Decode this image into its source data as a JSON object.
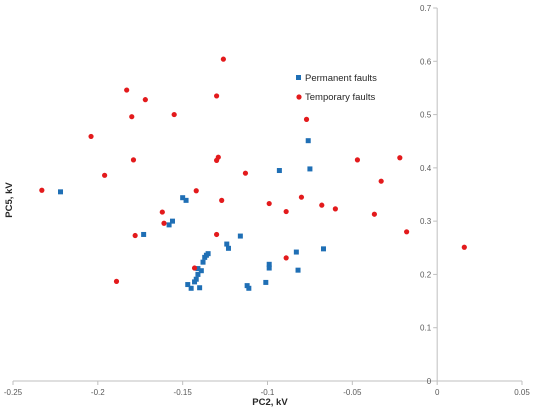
{
  "chart_data": {
    "type": "scatter",
    "title": "",
    "xlabel": "PC2, kV",
    "ylabel": "PC5, kV",
    "xlim": [
      -0.25,
      0.05
    ],
    "ylim": [
      0,
      0.7
    ],
    "x_ticks": [
      "-0.25",
      "-0.2",
      "-0.15",
      "-0.1",
      "-0.05",
      "0",
      "0.05"
    ],
    "y_ticks": [
      "0",
      "0.1",
      "0.2",
      "0.3",
      "0.4",
      "0.5",
      "0.6",
      "0.7"
    ],
    "grid": false,
    "legend_position": "upper-center-right",
    "series": [
      {
        "name": "Permanent faults",
        "marker": "square",
        "color": "#1f6fb5",
        "points": [
          [
            -0.222,
            0.355
          ],
          [
            -0.173,
            0.275
          ],
          [
            -0.158,
            0.293
          ],
          [
            -0.156,
            0.3
          ],
          [
            -0.15,
            0.344
          ],
          [
            -0.148,
            0.339
          ],
          [
            -0.147,
            0.181
          ],
          [
            -0.145,
            0.174
          ],
          [
            -0.143,
            0.186
          ],
          [
            -0.142,
            0.191
          ],
          [
            -0.141,
            0.2
          ],
          [
            -0.141,
            0.211
          ],
          [
            -0.14,
            0.175
          ],
          [
            -0.139,
            0.207
          ],
          [
            -0.138,
            0.223
          ],
          [
            -0.137,
            0.232
          ],
          [
            -0.136,
            0.236
          ],
          [
            -0.135,
            0.239
          ],
          [
            -0.124,
            0.257
          ],
          [
            -0.123,
            0.249
          ],
          [
            -0.116,
            0.272
          ],
          [
            -0.112,
            0.179
          ],
          [
            -0.111,
            0.174
          ],
          [
            -0.101,
            0.185
          ],
          [
            -0.099,
            0.219
          ],
          [
            -0.099,
            0.212
          ],
          [
            -0.093,
            0.395
          ],
          [
            -0.083,
            0.242
          ],
          [
            -0.082,
            0.208
          ],
          [
            -0.076,
            0.451
          ],
          [
            -0.075,
            0.398
          ],
          [
            -0.067,
            0.248
          ]
        ]
      },
      {
        "name": "Temporary faults",
        "marker": "circle",
        "color": "#e31a1c",
        "points": [
          [
            -0.233,
            0.358
          ],
          [
            -0.204,
            0.459
          ],
          [
            -0.196,
            0.386
          ],
          [
            -0.189,
            0.187
          ],
          [
            -0.183,
            0.546
          ],
          [
            -0.18,
            0.496
          ],
          [
            -0.179,
            0.415
          ],
          [
            -0.178,
            0.273
          ],
          [
            -0.172,
            0.528
          ],
          [
            -0.162,
            0.317
          ],
          [
            -0.161,
            0.296
          ],
          [
            -0.155,
            0.5
          ],
          [
            -0.143,
            0.212
          ],
          [
            -0.142,
            0.357
          ],
          [
            -0.13,
            0.535
          ],
          [
            -0.13,
            0.414
          ],
          [
            -0.129,
            0.42
          ],
          [
            -0.13,
            0.275
          ],
          [
            -0.127,
            0.339
          ],
          [
            -0.126,
            0.604
          ],
          [
            -0.113,
            0.39
          ],
          [
            -0.099,
            0.333
          ],
          [
            -0.089,
            0.318
          ],
          [
            -0.089,
            0.231
          ],
          [
            -0.08,
            0.345
          ],
          [
            -0.077,
            0.491
          ],
          [
            -0.068,
            0.33
          ],
          [
            -0.06,
            0.323
          ],
          [
            -0.047,
            0.415
          ],
          [
            -0.037,
            0.313
          ],
          [
            -0.033,
            0.375
          ],
          [
            -0.022,
            0.419
          ],
          [
            -0.018,
            0.28
          ],
          [
            0.016,
            0.251
          ]
        ]
      }
    ]
  }
}
